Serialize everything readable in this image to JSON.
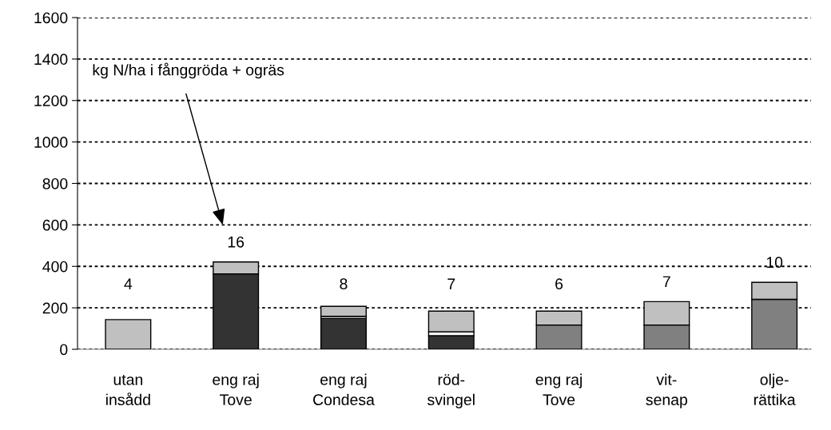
{
  "chart_data": {
    "type": "bar",
    "stacked": true,
    "categories": [
      "utan\ninsådd",
      "eng raj\nTove",
      "eng raj\nCondesa",
      "röd-\nsvingel",
      "eng raj\nTove",
      "vit-\nsenap",
      "olje-\nrättika"
    ],
    "series": [
      {
        "colors": [
          "#333333",
          "#333333",
          "#333333",
          "#333333",
          "#808080",
          "#808080",
          "#808080"
        ],
        "values": [
          0,
          364,
          149,
          66,
          117,
          117,
          241
        ]
      },
      {
        "color": "#ffffff",
        "values": [
          null,
          null,
          10,
          18,
          null,
          null,
          null
        ]
      },
      {
        "color": "#c0c0c0",
        "values": [
          143,
          57,
          48,
          100,
          67,
          113,
          82
        ]
      }
    ],
    "ylim": [
      0,
      1600
    ],
    "yticks": [
      0,
      200,
      400,
      600,
      800,
      1000,
      1200,
      1400,
      1600
    ],
    "grid": "y",
    "annotations": [
      "kg N/ha i fånggröda + ogräs",
      "4",
      "16",
      "8",
      "7",
      "6",
      "7",
      "10"
    ]
  }
}
